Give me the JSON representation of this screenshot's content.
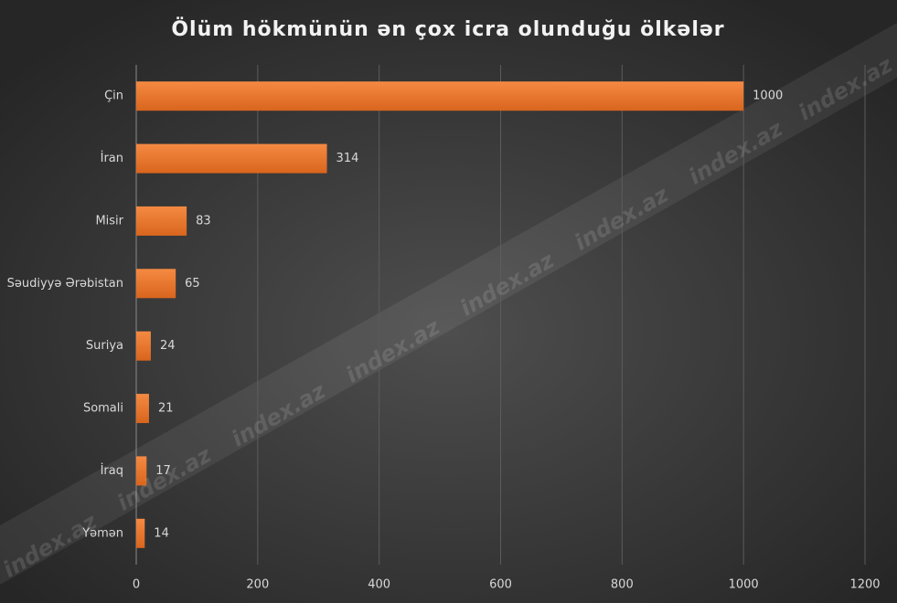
{
  "chart_data": {
    "type": "bar",
    "orientation": "horizontal",
    "title": "Ölüm hökmünün ən çox icra olunduğu ölkələr",
    "categories": [
      "Çin",
      "İran",
      "Misir",
      "Səudiyyə Ərəbistan",
      "Suriya",
      "Somali",
      "İraq",
      "Yəmən"
    ],
    "values": [
      1000,
      314,
      83,
      65,
      24,
      21,
      17,
      14
    ],
    "color": "#ee7a2f",
    "xlim": [
      0,
      1200
    ],
    "xticks": [
      0,
      200,
      400,
      600,
      800,
      1000,
      1200
    ],
    "grid": true
  },
  "watermark": "index.az"
}
